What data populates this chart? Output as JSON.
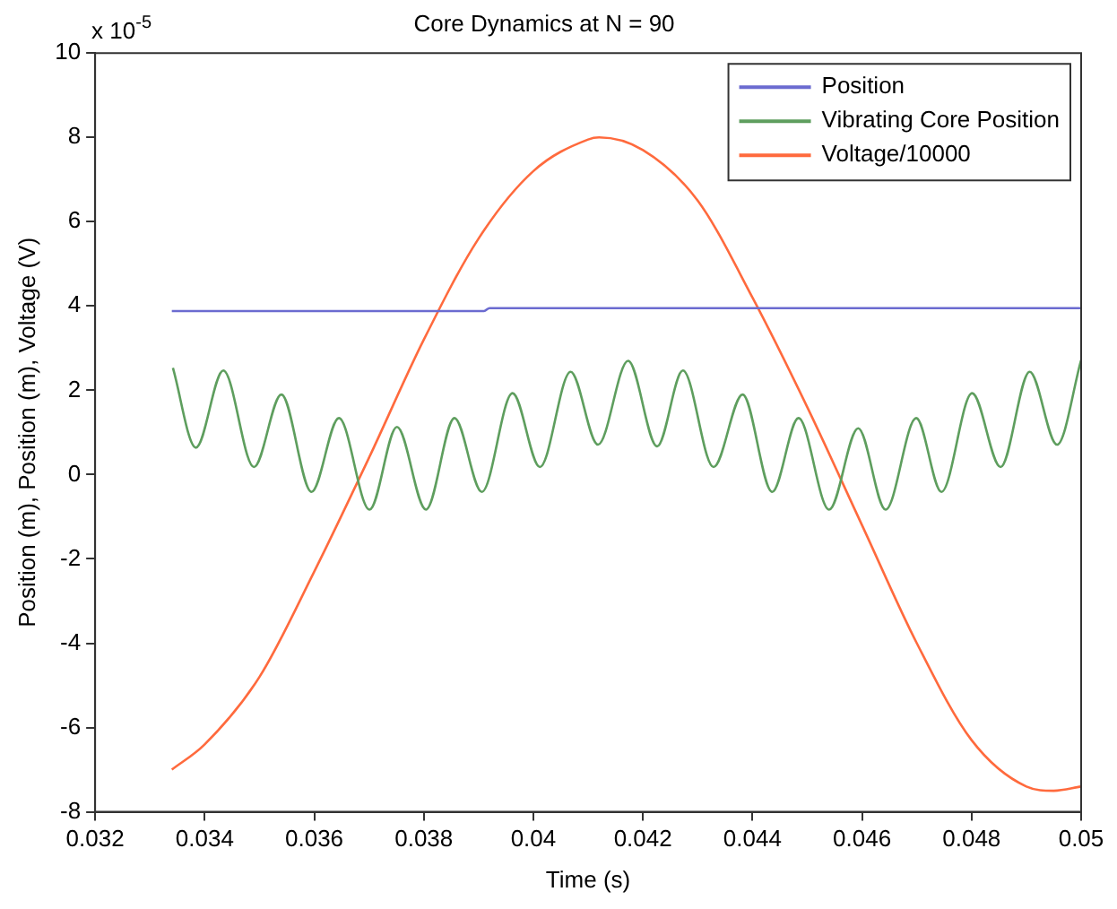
{
  "chart_data": {
    "type": "line",
    "title": "Core Dynamics at N = 90",
    "xlabel": "Time (s)",
    "ylabel": "Position (m), Position (m), Voltage (V)",
    "annotations": [
      "x 10$^{-5}$"
    ],
    "xlim": [
      0.032,
      0.05
    ],
    "xticks": [
      0.032,
      0.034,
      0.036,
      0.038,
      0.04,
      0.042,
      0.044,
      0.046,
      0.048,
      0.05
    ],
    "ylim": [
      -8,
      10
    ],
    "yticks": [
      -8,
      -6,
      -4,
      -2,
      0,
      2,
      4,
      6,
      8,
      10
    ],
    "grid": false,
    "legend": "top right",
    "marker": "none",
    "line_style": "solid",
    "series": [
      {
        "name": "Position",
        "color": "#6b6bd0",
        "x": [
          0.0334,
          0.0391,
          0.0392,
          0.05
        ],
        "values": [
          3.88,
          3.88,
          3.95,
          3.95
        ]
      },
      {
        "name": "Vibrating Core Position",
        "color": "#5e9e5e",
        "x": [
          0.03342,
          0.03384,
          0.03434,
          0.0349,
          0.0354,
          0.03595,
          0.03645,
          0.03701,
          0.03751,
          0.03804,
          0.03856,
          0.03906,
          0.03962,
          0.04012,
          0.04068,
          0.04118,
          0.04173,
          0.04226,
          0.04273,
          0.04329,
          0.04382,
          0.04436,
          0.04484,
          0.0454,
          0.04593,
          0.04643,
          0.04699,
          0.04745,
          0.04801,
          0.04853,
          0.04906,
          0.04956,
          0.05
        ],
        "values": [
          2.53,
          0.64,
          2.47,
          0.18,
          1.9,
          -0.41,
          1.34,
          -0.83,
          1.13,
          -0.83,
          1.34,
          -0.41,
          1.93,
          0.18,
          2.44,
          0.71,
          2.7,
          0.67,
          2.47,
          0.18,
          1.9,
          -0.41,
          1.34,
          -0.83,
          1.1,
          -0.83,
          1.34,
          -0.41,
          1.93,
          0.18,
          2.44,
          0.71,
          2.72
        ]
      },
      {
        "name": "Voltage/10000",
        "color": "#ff6a3d",
        "x": [
          0.0334,
          0.034,
          0.035,
          0.036,
          0.037,
          0.038,
          0.039,
          0.04,
          0.041,
          0.0412,
          0.042,
          0.043,
          0.044,
          0.045,
          0.046,
          0.047,
          0.048,
          0.049,
          0.0495,
          0.05
        ],
        "values": [
          -7.0,
          -6.4,
          -4.8,
          -2.3,
          0.4,
          3.2,
          5.6,
          7.2,
          7.95,
          8.0,
          7.7,
          6.5,
          4.2,
          1.6,
          -1.2,
          -4.0,
          -6.3,
          -7.4,
          -7.5,
          -7.4
        ]
      }
    ]
  }
}
